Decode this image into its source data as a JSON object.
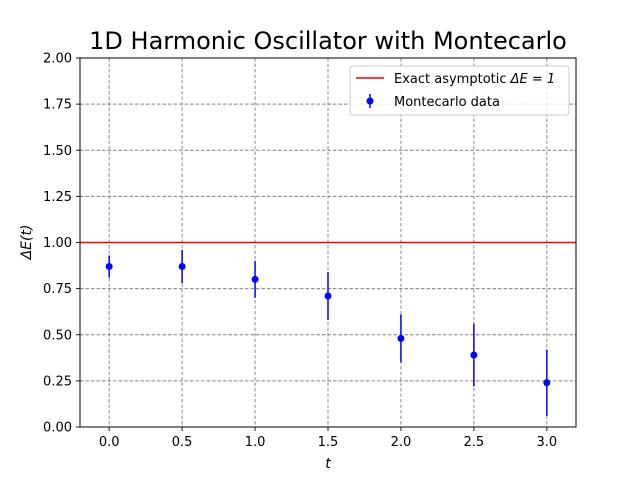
{
  "chart_data": {
    "type": "scatter",
    "title": "1D Harmonic Oscillator with Montecarlo",
    "xlabel": "t",
    "ylabel": "ΔE(t)",
    "xlim": [
      -0.2,
      3.2
    ],
    "ylim": [
      0.0,
      2.0
    ],
    "xticks": [
      0.0,
      0.5,
      1.0,
      1.5,
      2.0,
      2.5,
      3.0
    ],
    "xtick_labels": [
      "0.0",
      "0.5",
      "1.0",
      "1.5",
      "2.0",
      "2.5",
      "3.0"
    ],
    "yticks": [
      0.0,
      0.25,
      0.5,
      0.75,
      1.0,
      1.25,
      1.5,
      1.75,
      2.0
    ],
    "ytick_labels": [
      "0.00",
      "0.25",
      "0.50",
      "0.75",
      "1.00",
      "1.25",
      "1.50",
      "1.75",
      "2.00"
    ],
    "grid": true,
    "legend_position": "top-right",
    "reference_line": {
      "name": "Exact asymptotic ΔE = 1",
      "legend_prefix": "Exact asymptotic ",
      "legend_math": "ΔE = 1",
      "y": 1.0,
      "color": "#ff0000"
    },
    "series": [
      {
        "name": "Montecarlo data",
        "color": "#0000ff",
        "x": [
          0.0,
          0.5,
          1.0,
          1.5,
          2.0,
          2.5,
          3.0
        ],
        "y": [
          0.87,
          0.87,
          0.8,
          0.71,
          0.48,
          0.39,
          0.24
        ],
        "yerr": [
          0.06,
          0.09,
          0.1,
          0.13,
          0.13,
          0.17,
          0.18
        ]
      }
    ]
  }
}
